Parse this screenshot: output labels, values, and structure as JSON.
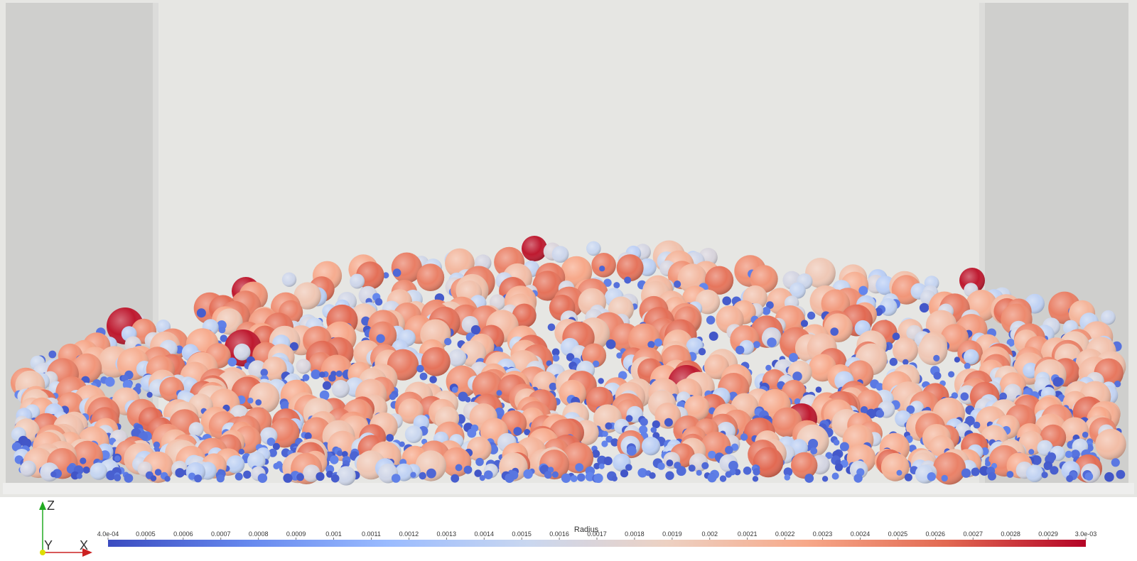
{
  "view": {
    "background": "#ffffff",
    "container_floor": "#eeeeed",
    "container_back": "#e6e6e3",
    "container_side": "#cfcfcd",
    "container_side_inner": "#dcdcda"
  },
  "axes": {
    "z_label": "Z",
    "y_label": "Y",
    "x_label": "X",
    "z_color": "#22aa22",
    "x_color": "#cc2222",
    "y_color": "#dddd00"
  },
  "colorbar": {
    "title": "Radius",
    "min": 0.0004,
    "max": 0.003,
    "colors": [
      "#3b4cc0",
      "#6688ee",
      "#9abbff",
      "#c9d7f0",
      "#edd1c2",
      "#f7a889",
      "#e26952",
      "#b40426"
    ],
    "ticks": [
      {
        "value": 0.0004,
        "label": "4.0e-04"
      },
      {
        "value": 0.0005,
        "label": "0.0005"
      },
      {
        "value": 0.0006,
        "label": "0.0006"
      },
      {
        "value": 0.0007,
        "label": "0.0007"
      },
      {
        "value": 0.0008,
        "label": "0.0008"
      },
      {
        "value": 0.0009,
        "label": "0.0009"
      },
      {
        "value": 0.001,
        "label": "0.001"
      },
      {
        "value": 0.0011,
        "label": "0.0011"
      },
      {
        "value": 0.0012,
        "label": "0.0012"
      },
      {
        "value": 0.0013,
        "label": "0.0013"
      },
      {
        "value": 0.0014,
        "label": "0.0014"
      },
      {
        "value": 0.0015,
        "label": "0.0015"
      },
      {
        "value": 0.0016,
        "label": "0.0016"
      },
      {
        "value": 0.0017,
        "label": "0.0017"
      },
      {
        "value": 0.0018,
        "label": "0.0018"
      },
      {
        "value": 0.0019,
        "label": "0.0019"
      },
      {
        "value": 0.002,
        "label": "0.002"
      },
      {
        "value": 0.0021,
        "label": "0.0021"
      },
      {
        "value": 0.0022,
        "label": "0.0022"
      },
      {
        "value": 0.0023,
        "label": "0.0023"
      },
      {
        "value": 0.0024,
        "label": "0.0024"
      },
      {
        "value": 0.0025,
        "label": "0.0025"
      },
      {
        "value": 0.0026,
        "label": "0.0026"
      },
      {
        "value": 0.0027,
        "label": "0.0027"
      },
      {
        "value": 0.0028,
        "label": "0.0028"
      },
      {
        "value": 0.0029,
        "label": "0.0029"
      },
      {
        "value": 0.003,
        "label": "3.0e-03"
      }
    ]
  }
}
